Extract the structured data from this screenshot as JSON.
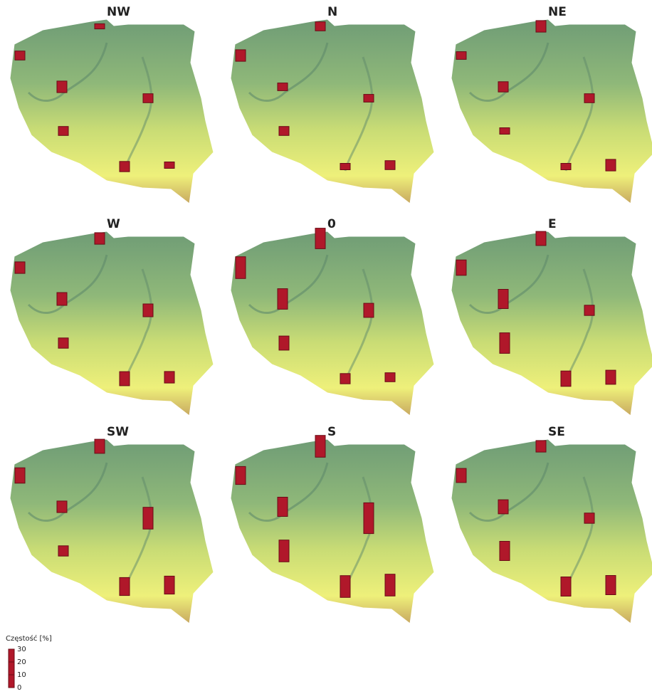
{
  "chart_data": [
    {
      "type": "bar",
      "title": "NW",
      "values": [
        4,
        7,
        9,
        7,
        7,
        8,
        5
      ],
      "color": "#b0182a"
    },
    {
      "type": "bar",
      "title": "N",
      "values": [
        7,
        9,
        6,
        6,
        7,
        5,
        7
      ],
      "color": "#b0182a"
    },
    {
      "type": "bar",
      "title": "NE",
      "values": [
        9,
        6,
        8,
        7,
        5,
        5,
        9
      ],
      "color": "#b0182a"
    },
    {
      "type": "bar",
      "title": "W",
      "values": [
        9,
        9,
        10,
        10,
        8,
        11,
        9
      ],
      "color": "#b0182a"
    },
    {
      "type": "bar",
      "title": "0",
      "values": [
        16,
        17,
        16,
        11,
        11,
        8,
        7
      ],
      "color": "#b0182a"
    },
    {
      "type": "bar",
      "title": "E",
      "values": [
        11,
        12,
        15,
        8,
        16,
        12,
        11
      ],
      "color": "#b0182a"
    },
    {
      "type": "bar",
      "title": "SW",
      "values": [
        11,
        12,
        9,
        17,
        8,
        14,
        14
      ],
      "color": "#b0182a"
    },
    {
      "type": "bar",
      "title": "S",
      "values": [
        17,
        14,
        15,
        24,
        17,
        17,
        17
      ],
      "color": "#b0182a"
    },
    {
      "type": "bar",
      "title": "SE",
      "values": [
        9,
        11,
        11,
        8,
        15,
        15,
        15
      ],
      "color": "#b0182a"
    }
  ],
  "legend": {
    "title": "Częstość [%]",
    "ticks": [
      0,
      10,
      20,
      30
    ],
    "color": "#b0182a"
  }
}
